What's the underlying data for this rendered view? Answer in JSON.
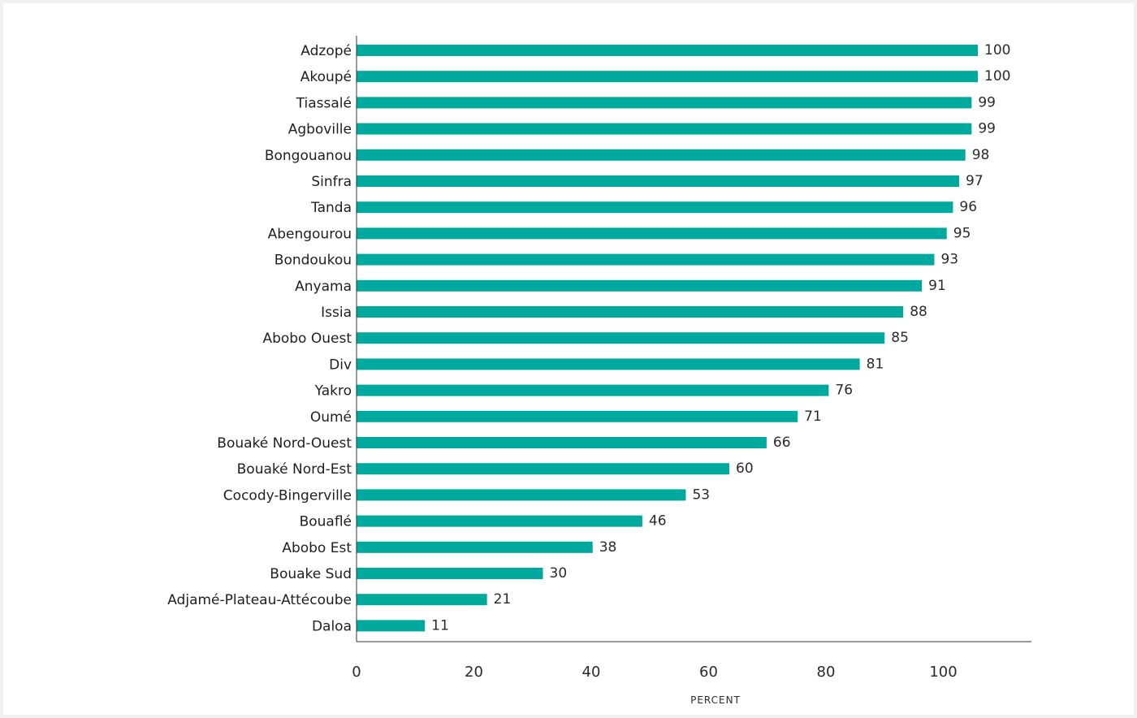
{
  "chart_data": {
    "type": "bar",
    "orientation": "horizontal",
    "categories": [
      "Adzopé",
      "Akoupé",
      "Tiassalé",
      "Agboville",
      "Bongouanou",
      "Sinfra",
      "Tanda",
      "Abengourou",
      "Bondoukou",
      "Anyama",
      "Issia",
      "Abobo Ouest",
      "Div",
      "Yakro",
      "Oumé",
      "Bouaké Nord-Ouest",
      "Bouaké Nord-Est",
      "Cocody-Bingerville",
      "Bouaflé",
      "Abobo Est",
      "Bouake Sud",
      "Adjamé-Plateau-Attécoube",
      "Daloa"
    ],
    "values": [
      100,
      100,
      99,
      99,
      98,
      97,
      96,
      95,
      93,
      91,
      88,
      85,
      81,
      76,
      71,
      66,
      60,
      53,
      46,
      38,
      30,
      21,
      11
    ],
    "data_labels": [
      "100",
      "100",
      "99",
      "99",
      "98",
      "97",
      "96",
      "95",
      "93",
      "91",
      "88",
      "85",
      "81",
      "76",
      "71",
      "66",
      "60",
      "53",
      "46",
      "38",
      "30",
      "21",
      "11"
    ],
    "x_ticks": [
      "0",
      "20",
      "40",
      "60",
      "80",
      "100"
    ],
    "xlabel": "PERCENT",
    "ylabel": "",
    "title": "",
    "xlim": [
      0,
      115
    ],
    "grid": false,
    "legend": "none",
    "bar_color": "#00a99d"
  }
}
